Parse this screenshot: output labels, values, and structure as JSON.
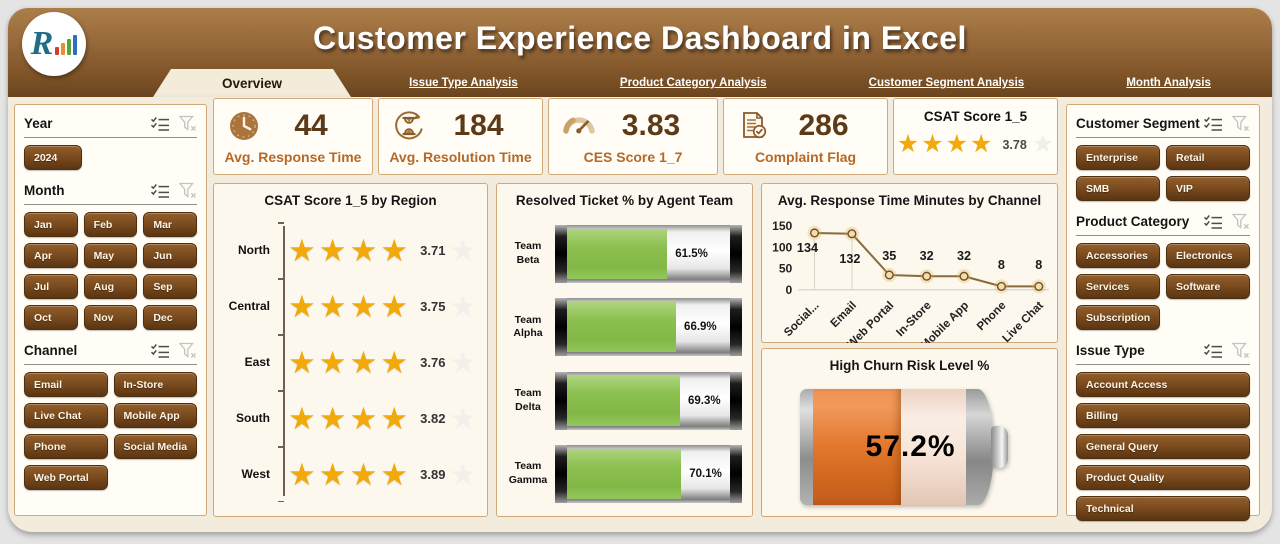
{
  "header": {
    "title": "Customer Experience Dashboard in Excel",
    "tabs": [
      {
        "label": "Overview",
        "active": true
      },
      {
        "label": "Issue Type Analysis",
        "active": false
      },
      {
        "label": "Product Category Analysis",
        "active": false
      },
      {
        "label": "Customer Segment Analysis",
        "active": false
      },
      {
        "label": "Month Analysis",
        "active": false
      }
    ]
  },
  "slicers": {
    "year": {
      "title": "Year",
      "items": [
        "2024"
      ]
    },
    "month": {
      "title": "Month",
      "items": [
        "Jan",
        "Feb",
        "Mar",
        "Apr",
        "May",
        "Jun",
        "Jul",
        "Aug",
        "Sep",
        "Oct",
        "Nov",
        "Dec"
      ]
    },
    "channel": {
      "title": "Channel",
      "items": [
        "Email",
        "In-Store",
        "Live Chat",
        "Mobile App",
        "Phone",
        "Social Media",
        "Web Portal"
      ]
    },
    "customer_segment": {
      "title": "Customer Segment",
      "items": [
        "Enterprise",
        "Retail",
        "SMB",
        "VIP"
      ]
    },
    "product_category": {
      "title": "Product Category",
      "items": [
        "Accessories",
        "Electronics",
        "Services",
        "Software",
        "Subscription"
      ]
    },
    "issue_type": {
      "title": "Issue Type",
      "items": [
        "Account Access",
        "Billing",
        "General Query",
        "Product Quality",
        "Technical"
      ]
    }
  },
  "kpis": [
    {
      "icon": "clock-icon",
      "value": "44",
      "label": "Avg. Response Time"
    },
    {
      "icon": "hourglass-icon",
      "value": "184",
      "label": "Avg. Resolution Time"
    },
    {
      "icon": "gauge-icon",
      "value": "3.83",
      "label": "CES Score 1_7"
    },
    {
      "icon": "report-check-icon",
      "value": "286",
      "label": "Complaint Flag"
    }
  ],
  "csat_kpi": {
    "title": "CSAT Score 1_5",
    "value": "3.78",
    "stars": 4,
    "max_stars": 5
  },
  "chart_data": [
    {
      "type": "rating",
      "title": "CSAT Score 1_5 by Region",
      "categories": [
        "North",
        "Central",
        "East",
        "South",
        "West"
      ],
      "values": [
        3.71,
        3.75,
        3.76,
        3.82,
        3.89
      ],
      "scale_max": 5
    },
    {
      "type": "bar",
      "title": "Resolved Ticket % by Agent Team",
      "categories": [
        "Team Beta",
        "Team Alpha",
        "Team Delta",
        "Team Gamma"
      ],
      "values": [
        61.5,
        66.9,
        69.3,
        70.1
      ],
      "unit": "%",
      "xlim": [
        0,
        100
      ]
    },
    {
      "type": "line",
      "title": "Avg. Response Time Minutes by Channel",
      "categories": [
        "Social...",
        "Email",
        "Web Portal",
        "In-Store",
        "Mobile App",
        "Phone",
        "Live Chat"
      ],
      "values": [
        134,
        132,
        35,
        32,
        32,
        8,
        8
      ],
      "yticks": [
        0,
        50,
        100,
        150
      ],
      "ylim": [
        0,
        150
      ],
      "grid": false,
      "legend": false
    },
    {
      "type": "gauge",
      "title": "High Churn Risk Level %",
      "value": 57.2,
      "label": "57.2%",
      "max": 100
    }
  ],
  "colors": {
    "header_brown": "#8a5e30",
    "button_brown": "#7c4c1f",
    "panel_border": "#cfa97a",
    "kpi_value": "#5c3a17",
    "kpi_label": "#b4692a",
    "star_gold": "#f2a90a",
    "bar_green": "#8cc050",
    "battery_orange": "#e2762c",
    "line_brown": "#8a6a3c"
  }
}
